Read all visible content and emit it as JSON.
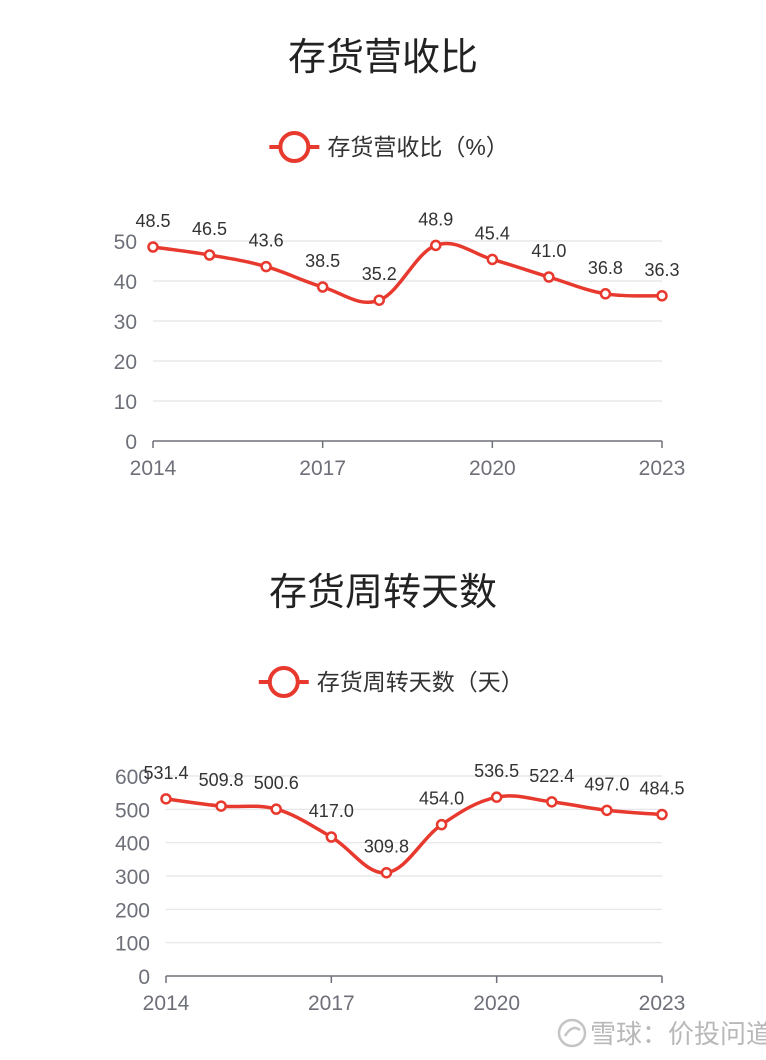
{
  "chart_data": [
    {
      "type": "line",
      "title": "存货营收比",
      "categories": [
        "2014",
        "2015",
        "2016",
        "2017",
        "2018",
        "2019",
        "2020",
        "2021",
        "2022",
        "2023"
      ],
      "x_tick_labels": [
        "2014",
        "2017",
        "2020",
        "2023"
      ],
      "series": [
        {
          "name": "存货营收比（%）",
          "values": [
            48.5,
            46.5,
            43.6,
            38.5,
            35.2,
            48.9,
            45.4,
            41.0,
            36.8,
            36.3
          ],
          "labels": [
            "48.5",
            "46.5",
            "43.6",
            "38.5",
            "35.2",
            "48.9",
            "45.4",
            "41.0",
            "36.8",
            "36.3"
          ]
        }
      ],
      "ylim": [
        0,
        50
      ],
      "y_ticks": [
        0,
        10,
        20,
        30,
        40,
        50
      ],
      "grid": true,
      "legend": "top-center",
      "color": "#e8392e"
    },
    {
      "type": "line",
      "title": "存货周转天数",
      "categories": [
        "2014",
        "2015",
        "2016",
        "2017",
        "2018",
        "2019",
        "2020",
        "2021",
        "2022",
        "2023"
      ],
      "x_tick_labels": [
        "2014",
        "2017",
        "2020",
        "2023"
      ],
      "series": [
        {
          "name": "存货周转天数（天）",
          "values": [
            531.4,
            509.8,
            500.6,
            417.0,
            309.8,
            454.0,
            536.5,
            522.4,
            497.0,
            484.5
          ],
          "labels": [
            "531.4",
            "509.8",
            "500.6",
            "417.0",
            "309.8",
            "454.0",
            "536.5",
            "522.4",
            "497.0",
            "484.5"
          ]
        }
      ],
      "ylim": [
        0,
        600
      ],
      "y_ticks": [
        0,
        100,
        200,
        300,
        400,
        500,
        600
      ],
      "grid": true,
      "legend": "top-center",
      "color": "#e8392e"
    }
  ],
  "watermark": {
    "text": "雪球：价投问道",
    "icon": "snowball-logo-icon"
  }
}
